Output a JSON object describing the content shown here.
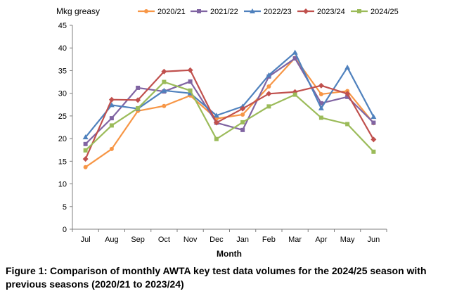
{
  "caption": "Figure 1: Comparison of monthly AWTA key test data volumes for the 2024/25 season with previous seasons (2020/21 to 2023/24)",
  "chart_data": {
    "type": "line",
    "title": "",
    "xlabel": "Month",
    "ylabel": "Mkg greasy",
    "ylim": [
      0,
      45
    ],
    "yticks": [
      0,
      5,
      10,
      15,
      20,
      25,
      30,
      35,
      40,
      45
    ],
    "grid": false,
    "legend_position": "top",
    "categories": [
      "Jul",
      "Aug",
      "Sep",
      "Oct",
      "Nov",
      "Dec",
      "Jan",
      "Feb",
      "Mar",
      "Apr",
      "May",
      "Jun"
    ],
    "series": [
      {
        "name": "2020/21",
        "color": "#f79646",
        "marker": "circle",
        "values": [
          13.7,
          17.7,
          26.1,
          27.2,
          29.5,
          24.4,
          25.3,
          31.5,
          37.8,
          29.8,
          30.5,
          23.4
        ]
      },
      {
        "name": "2021/22",
        "color": "#8064a2",
        "marker": "square",
        "values": [
          18.8,
          24.5,
          31.2,
          30.4,
          32.6,
          23.5,
          21.9,
          33.7,
          37.7,
          27.8,
          29.2,
          23.5
        ]
      },
      {
        "name": "2022/23",
        "color": "#4f81bd",
        "marker": "triangle",
        "values": [
          20.3,
          27.4,
          26.6,
          30.6,
          30.0,
          25.1,
          27.1,
          34.0,
          39.0,
          26.7,
          35.7,
          24.8
        ]
      },
      {
        "name": "2023/24",
        "color": "#c0504d",
        "marker": "diamond",
        "values": [
          15.5,
          28.6,
          28.5,
          34.8,
          35.1,
          23.5,
          26.6,
          29.9,
          30.3,
          31.7,
          29.9,
          19.8
        ]
      },
      {
        "name": "2024/25",
        "color": "#9bbb59",
        "marker": "square",
        "values": [
          17.4,
          22.9,
          26.7,
          32.5,
          30.6,
          19.9,
          23.6,
          27.1,
          29.7,
          24.6,
          23.2,
          17.1
        ]
      }
    ]
  }
}
